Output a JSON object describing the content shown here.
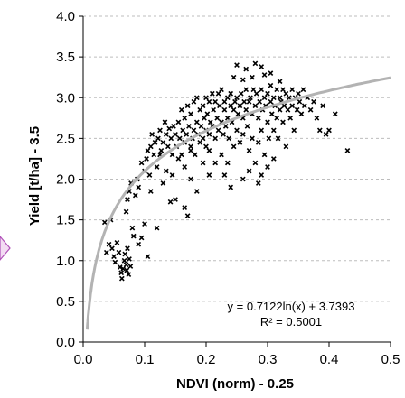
{
  "chart_data": {
    "type": "scatter",
    "xlabel": "NDVI (norm) - 0.25",
    "ylabel": "Yield [t/ha] - 3.5",
    "xlim": [
      0,
      0.5
    ],
    "ylim": [
      0,
      4.0
    ],
    "x_ticks": [
      "0.0",
      "0.1",
      "0.2",
      "0.3",
      "0.4",
      "0.5"
    ],
    "y_ticks": [
      "0.0",
      "0.5",
      "1.0",
      "1.5",
      "2.0",
      "2.5",
      "3.0",
      "3.5",
      "4.0"
    ],
    "grid": "horizontal dashed",
    "marker": "x",
    "marker_color": "#000000",
    "trendline": {
      "type": "logarithmic",
      "a": 0.7122,
      "b": 3.7393,
      "color": "#b3b3b3",
      "equation": "y = 0.7122ln(x)  + 3.7393",
      "r_squared": "R² = 0.5001"
    },
    "points": [
      [
        0.035,
        1.47
      ],
      [
        0.045,
        1.5
      ],
      [
        0.038,
        1.1
      ],
      [
        0.042,
        1.2
      ],
      [
        0.047,
        1.15
      ],
      [
        0.05,
        1.05
      ],
      [
        0.052,
        0.98
      ],
      [
        0.055,
        1.22
      ],
      [
        0.058,
        1.1
      ],
      [
        0.06,
        0.92
      ],
      [
        0.062,
        0.85
      ],
      [
        0.063,
        0.78
      ],
      [
        0.065,
        0.9
      ],
      [
        0.067,
        1.0
      ],
      [
        0.068,
        1.08
      ],
      [
        0.07,
        0.95
      ],
      [
        0.071,
        0.88
      ],
      [
        0.072,
        1.15
      ],
      [
        0.074,
        0.83
      ],
      [
        0.075,
        1.02
      ],
      [
        0.077,
        0.93
      ],
      [
        0.07,
        1.6
      ],
      [
        0.072,
        1.75
      ],
      [
        0.075,
        1.85
      ],
      [
        0.078,
        1.95
      ],
      [
        0.08,
        1.4
      ],
      [
        0.082,
        1.3
      ],
      [
        0.085,
        1.8
      ],
      [
        0.088,
        2.0
      ],
      [
        0.09,
        1.9
      ],
      [
        0.09,
        1.2
      ],
      [
        0.095,
        1.28
      ],
      [
        0.1,
        1.45
      ],
      [
        0.1,
        2.1
      ],
      [
        0.103,
        2.25
      ],
      [
        0.105,
        2.35
      ],
      [
        0.108,
        2.05
      ],
      [
        0.11,
        2.4
      ],
      [
        0.112,
        2.55
      ],
      [
        0.115,
        2.3
      ],
      [
        0.117,
        2.45
      ],
      [
        0.12,
        2.15
      ],
      [
        0.122,
        2.5
      ],
      [
        0.125,
        2.6
      ],
      [
        0.127,
        2.35
      ],
      [
        0.13,
        1.95
      ],
      [
        0.13,
        2.45
      ],
      [
        0.133,
        2.7
      ],
      [
        0.135,
        2.55
      ],
      [
        0.138,
        2.4
      ],
      [
        0.14,
        2.62
      ],
      [
        0.142,
        1.72
      ],
      [
        0.143,
        2.5
      ],
      [
        0.145,
        2.3
      ],
      [
        0.147,
        2.65
      ],
      [
        0.15,
        2.55
      ],
      [
        0.15,
        1.75
      ],
      [
        0.152,
        2.4
      ],
      [
        0.155,
        2.7
      ],
      [
        0.157,
        2.5
      ],
      [
        0.16,
        2.85
      ],
      [
        0.16,
        2.3
      ],
      [
        0.162,
        2.6
      ],
      [
        0.165,
        2.45
      ],
      [
        0.165,
        2.75
      ],
      [
        0.168,
        2.55
      ],
      [
        0.17,
        2.9
      ],
      [
        0.17,
        1.55
      ],
      [
        0.172,
        2.65
      ],
      [
        0.175,
        2.4
      ],
      [
        0.175,
        2.8
      ],
      [
        0.178,
        2.5
      ],
      [
        0.18,
        2.95
      ],
      [
        0.18,
        2.6
      ],
      [
        0.182,
        2.3
      ],
      [
        0.185,
        2.7
      ],
      [
        0.185,
        3.0
      ],
      [
        0.187,
        2.55
      ],
      [
        0.19,
        2.85
      ],
      [
        0.19,
        2.45
      ],
      [
        0.192,
        2.65
      ],
      [
        0.195,
        2.9
      ],
      [
        0.195,
        2.5
      ],
      [
        0.197,
        2.75
      ],
      [
        0.2,
        3.0
      ],
      [
        0.2,
        2.6
      ],
      [
        0.2,
        2.4
      ],
      [
        0.202,
        2.8
      ],
      [
        0.205,
        2.95
      ],
      [
        0.205,
        2.55
      ],
      [
        0.207,
        2.7
      ],
      [
        0.21,
        3.05
      ],
      [
        0.21,
        2.65
      ],
      [
        0.212,
        2.85
      ],
      [
        0.215,
        2.5
      ],
      [
        0.215,
        2.95
      ],
      [
        0.218,
        2.75
      ],
      [
        0.22,
        3.05
      ],
      [
        0.22,
        2.6
      ],
      [
        0.222,
        2.9
      ],
      [
        0.225,
        2.7
      ],
      [
        0.225,
        3.1
      ],
      [
        0.228,
        2.55
      ],
      [
        0.23,
        2.85
      ],
      [
        0.23,
        2.95
      ],
      [
        0.232,
        2.65
      ],
      [
        0.235,
        3.0
      ],
      [
        0.235,
        2.75
      ],
      [
        0.237,
        2.5
      ],
      [
        0.24,
        2.9
      ],
      [
        0.24,
        3.05
      ],
      [
        0.242,
        2.7
      ],
      [
        0.245,
        2.85
      ],
      [
        0.245,
        2.4
      ],
      [
        0.247,
        2.95
      ],
      [
        0.25,
        3.0
      ],
      [
        0.25,
        2.6
      ],
      [
        0.252,
        2.8
      ],
      [
        0.255,
        2.9
      ],
      [
        0.255,
        2.45
      ],
      [
        0.257,
        3.05
      ],
      [
        0.26,
        2.75
      ],
      [
        0.26,
        2.55
      ],
      [
        0.262,
        2.95
      ],
      [
        0.265,
        2.85
      ],
      [
        0.265,
        3.1
      ],
      [
        0.267,
        2.65
      ],
      [
        0.27,
        2.95
      ],
      [
        0.27,
        2.35
      ],
      [
        0.272,
        3.0
      ],
      [
        0.275,
        2.8
      ],
      [
        0.275,
        2.5
      ],
      [
        0.277,
        3.1
      ],
      [
        0.28,
        2.9
      ],
      [
        0.28,
        2.2
      ],
      [
        0.282,
        3.05
      ],
      [
        0.285,
        2.75
      ],
      [
        0.285,
        2.45
      ],
      [
        0.287,
        2.95
      ],
      [
        0.29,
        3.1
      ],
      [
        0.29,
        2.6
      ],
      [
        0.292,
        2.85
      ],
      [
        0.295,
        3.0
      ],
      [
        0.295,
        2.3
      ],
      [
        0.297,
        2.9
      ],
      [
        0.3,
        3.05
      ],
      [
        0.3,
        2.7
      ],
      [
        0.302,
        2.5
      ],
      [
        0.305,
        2.95
      ],
      [
        0.305,
        3.15
      ],
      [
        0.307,
        2.8
      ],
      [
        0.31,
        3.0
      ],
      [
        0.31,
        2.6
      ],
      [
        0.312,
        2.9
      ],
      [
        0.315,
        3.1
      ],
      [
        0.315,
        2.75
      ],
      [
        0.317,
        2.5
      ],
      [
        0.32,
        3.0
      ],
      [
        0.32,
        2.85
      ],
      [
        0.322,
        2.95
      ],
      [
        0.325,
        3.1
      ],
      [
        0.325,
        2.7
      ],
      [
        0.327,
        2.9
      ],
      [
        0.33,
        3.05
      ],
      [
        0.33,
        2.4
      ],
      [
        0.333,
        2.85
      ],
      [
        0.335,
        3.0
      ],
      [
        0.337,
        2.75
      ],
      [
        0.34,
        3.1
      ],
      [
        0.34,
        2.9
      ],
      [
        0.343,
        2.6
      ],
      [
        0.345,
        3.0
      ],
      [
        0.348,
        2.85
      ],
      [
        0.35,
        3.05
      ],
      [
        0.352,
        2.95
      ],
      [
        0.355,
        2.8
      ],
      [
        0.358,
        3.1
      ],
      [
        0.36,
        2.9
      ],
      [
        0.365,
        3.0
      ],
      [
        0.37,
        2.85
      ],
      [
        0.375,
        2.95
      ],
      [
        0.38,
        2.75
      ],
      [
        0.385,
        2.6
      ],
      [
        0.39,
        2.9
      ],
      [
        0.395,
        2.55
      ],
      [
        0.4,
        2.6
      ],
      [
        0.41,
        2.8
      ],
      [
        0.43,
        2.35
      ],
      [
        0.25,
        3.4
      ],
      [
        0.265,
        3.35
      ],
      [
        0.28,
        3.42
      ],
      [
        0.29,
        3.38
      ],
      [
        0.305,
        3.3
      ],
      [
        0.275,
        3.25
      ],
      [
        0.26,
        3.22
      ],
      [
        0.245,
        3.25
      ],
      [
        0.295,
        3.28
      ],
      [
        0.32,
        3.2
      ],
      [
        0.185,
        1.85
      ],
      [
        0.175,
        2.0
      ],
      [
        0.165,
        1.65
      ],
      [
        0.205,
        2.35
      ],
      [
        0.215,
        2.2
      ],
      [
        0.23,
        2.05
      ],
      [
        0.26,
        2.0
      ],
      [
        0.27,
        2.1
      ],
      [
        0.285,
        1.95
      ],
      [
        0.3,
        2.15
      ],
      [
        0.29,
        2.05
      ],
      [
        0.31,
        2.25
      ],
      [
        0.24,
        1.9
      ],
      [
        0.12,
        1.4
      ],
      [
        0.135,
        2.1
      ],
      [
        0.105,
        1.05
      ],
      [
        0.11,
        1.85
      ],
      [
        0.095,
        2.2
      ],
      [
        0.205,
        2.05
      ],
      [
        0.195,
        2.2
      ],
      [
        0.225,
        2.3
      ],
      [
        0.235,
        2.2
      ],
      [
        0.155,
        2.25
      ],
      [
        0.165,
        2.15
      ],
      [
        0.175,
        2.35
      ],
      [
        0.145,
        2.05
      ],
      [
        0.125,
        2.3
      ]
    ]
  }
}
